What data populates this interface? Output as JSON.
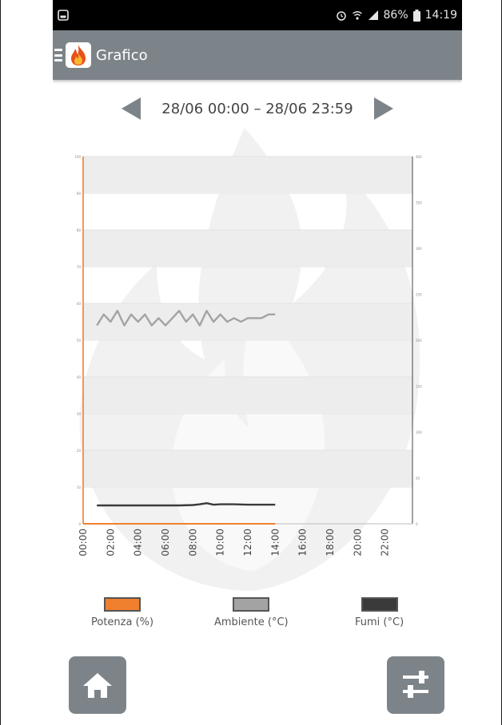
{
  "status_bar": {
    "battery": "86%",
    "time": "14:19",
    "icons": [
      "image-icon",
      "alarm-icon",
      "wifi-icon",
      "signal-icon",
      "battery-icon"
    ]
  },
  "app_bar": {
    "title": "Grafico",
    "icons": [
      "menu-icon",
      "flame-logo-icon"
    ]
  },
  "date_nav": {
    "range": "28/06 00:00 – 28/06 23:59",
    "prev_icon": "arrow-left-icon",
    "next_icon": "arrow-right-icon"
  },
  "chart_data": {
    "type": "line",
    "x_ticks": [
      "00:00",
      "02:00",
      "04:00",
      "06:00",
      "08:00",
      "10:00",
      "12:00",
      "14:00",
      "16:00",
      "18:00",
      "20:00",
      "22:00"
    ],
    "xlim": [
      0,
      24
    ],
    "ylim_left": [
      0,
      100
    ],
    "left_ticks": [
      0,
      10,
      20,
      30,
      40,
      50,
      60,
      70,
      80,
      90,
      100
    ],
    "ylim_right": [
      0,
      400
    ],
    "right_ticks": [
      0,
      50,
      100,
      150,
      200,
      250,
      300,
      350,
      400
    ],
    "grid": "horizontal bands",
    "legend_position": "bottom",
    "series": [
      {
        "name": "Potenza (%)",
        "color": "#f07f2e",
        "axis": "left",
        "x": [
          0,
          1,
          2,
          3,
          4,
          5,
          6,
          7,
          8,
          9,
          10,
          11,
          12,
          13,
          14
        ],
        "y": [
          0,
          0,
          0,
          0,
          0,
          0,
          0,
          0,
          0,
          0,
          0,
          0,
          0,
          0,
          0
        ]
      },
      {
        "name": "Ambiente (°C)",
        "color": "#a3a3a3",
        "axis": "left",
        "x": [
          1,
          1.5,
          2,
          2.5,
          3,
          3.5,
          4,
          4.5,
          5,
          5.5,
          6,
          6.5,
          7,
          7.5,
          8,
          8.5,
          9,
          9.5,
          10,
          10.5,
          11,
          11.5,
          12,
          12.5,
          13,
          13.5,
          14
        ],
        "y": [
          54,
          57,
          55,
          58,
          54,
          57,
          55,
          57,
          54,
          56,
          54,
          56,
          58,
          55,
          57,
          54,
          58,
          55,
          57,
          55,
          56,
          55,
          56,
          56,
          56,
          57,
          57
        ]
      },
      {
        "name": "Fumi (°C)",
        "color": "#3a3a3a",
        "axis": "left",
        "x": [
          1,
          2,
          3,
          4,
          5,
          6,
          7,
          8,
          8.5,
          9,
          9.5,
          10,
          11,
          12,
          13,
          14
        ],
        "y": [
          5,
          5,
          5,
          5,
          5,
          5,
          5,
          5.1,
          5.3,
          5.6,
          5.2,
          5.3,
          5.3,
          5.2,
          5.2,
          5.2
        ]
      }
    ]
  },
  "legend": [
    {
      "label": "Potenza (%)",
      "color": "#f07f2e"
    },
    {
      "label": "Ambiente (°C)",
      "color": "#a3a3a3"
    },
    {
      "label": "Fumi (°C)",
      "color": "#3a3a3a"
    }
  ],
  "bottom_buttons": {
    "home_icon": "home-icon",
    "settings_icon": "sliders-icon"
  },
  "colors": {
    "app_bar": "#7d8489",
    "status_bar": "#000000",
    "accent_orange": "#f07f2e",
    "grid_band": "#ededed"
  }
}
